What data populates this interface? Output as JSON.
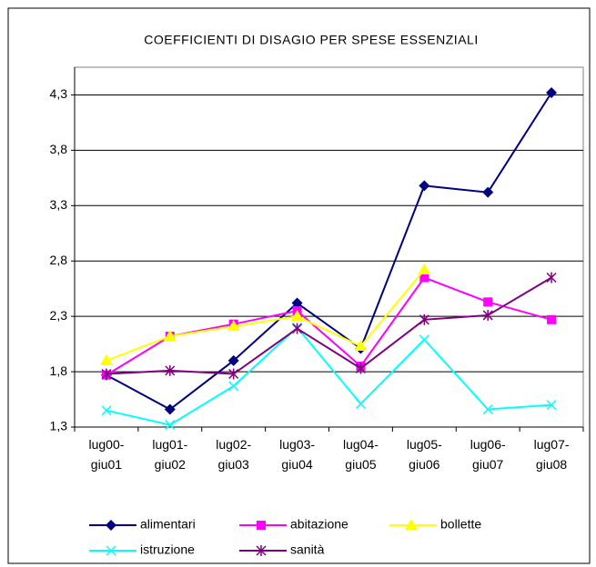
{
  "chart_data": {
    "type": "line",
    "title": "COEFFICIENTI DI DISAGIO PER SPESE ESSENZIALI",
    "categories": [
      [
        "lug00-",
        "giu01"
      ],
      [
        "lug01-",
        "giu02"
      ],
      [
        "lug02-",
        "giu03"
      ],
      [
        "lug03-",
        "giu04"
      ],
      [
        "lug04-",
        "giu05"
      ],
      [
        "lug05-",
        "giu06"
      ],
      [
        "lug06-",
        "giu07"
      ],
      [
        "lug07-",
        "giu08"
      ]
    ],
    "series": [
      {
        "name": "alimentari",
        "color": "#000080",
        "marker": "diamond",
        "values": [
          1.77,
          1.46,
          1.9,
          2.42,
          2.01,
          3.48,
          3.42,
          4.32
        ]
      },
      {
        "name": "abitazione",
        "color": "#ff00ff",
        "marker": "square",
        "values": [
          1.77,
          2.12,
          2.23,
          2.35,
          1.85,
          2.65,
          2.43,
          2.27
        ]
      },
      {
        "name": "bollette",
        "color": "#ffff00",
        "marker": "triangle",
        "values": [
          1.9,
          2.12,
          2.21,
          2.3,
          2.03,
          2.72,
          null,
          null
        ]
      },
      {
        "name": "istruzione",
        "color": "#00ffff",
        "marker": "x",
        "values": [
          1.45,
          1.32,
          1.67,
          2.2,
          1.51,
          2.09,
          1.46,
          1.5
        ]
      },
      {
        "name": "sanità",
        "color": "#800080",
        "marker": "asterisk",
        "values": [
          1.78,
          1.81,
          1.78,
          2.19,
          1.83,
          2.27,
          2.31,
          2.65
        ]
      }
    ],
    "ylim": [
      1.3,
      4.55
    ],
    "yticks": [
      {
        "value": 1.3,
        "label": "1,3"
      },
      {
        "value": 1.8,
        "label": "1,8"
      },
      {
        "value": 2.3,
        "label": "2,3"
      },
      {
        "value": 2.8,
        "label": "2,8"
      },
      {
        "value": 3.3,
        "label": "3,3"
      },
      {
        "value": 3.8,
        "label": "3,8"
      },
      {
        "value": 4.3,
        "label": "4,3"
      }
    ],
    "grid": true,
    "legend": "bottom"
  }
}
